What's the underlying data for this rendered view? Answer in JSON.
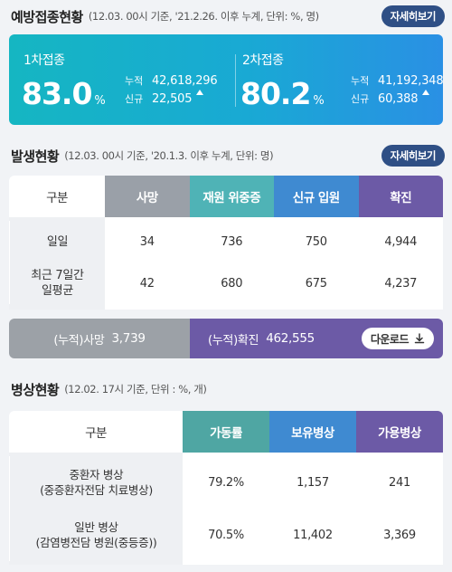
{
  "vaccination": {
    "title": "예방접종현황",
    "note": "(12.03. 00시 기준, '21.2.26. 이후 누계, 단위: %, 명)",
    "detail_button": "자세히보기",
    "first_dose": {
      "label": "1차접종",
      "percent": "83.0",
      "unit": "%",
      "cumulative_label": "누적",
      "cumulative": "42,618,296",
      "new_label": "신규",
      "new": "22,505"
    },
    "second_dose": {
      "label": "2차접종",
      "percent": "80.2",
      "unit": "%",
      "cumulative_label": "누적",
      "cumulative": "41,192,348",
      "new_label": "신규",
      "new": "60,388"
    }
  },
  "outbreak": {
    "title": "발생현황",
    "note": "(12.03. 00시 기준, '20.1.3. 이후 누계, 단위: 명)",
    "detail_button": "자세히보기",
    "headers": [
      "구분",
      "사망",
      "재원 위중증",
      "신규 입원",
      "확진"
    ],
    "rows": [
      {
        "label": "일일",
        "values": [
          "34",
          "736",
          "750",
          "4,944"
        ]
      },
      {
        "label": "최근 7일간\n일평균",
        "values": [
          "42",
          "680",
          "675",
          "4,237"
        ]
      }
    ],
    "cumulative": {
      "death_label": "(누적)사망",
      "death_value": "3,739",
      "confirmed_label": "(누적)확진",
      "confirmed_value": "462,555",
      "download_button": "다운로드"
    }
  },
  "beds": {
    "title": "병상현황",
    "note": "(12.02. 17시 기준, 단위 : %, 개)",
    "headers": [
      "구분",
      "가동률",
      "보유병상",
      "가용병상"
    ],
    "rows": [
      {
        "label": "중환자 병상\n(중증환자전담 치료병상)",
        "values": [
          "79.2%",
          "1,157",
          "241"
        ]
      },
      {
        "label": "일반 병상\n(감염병전담 병원(중등증))",
        "values": [
          "70.5%",
          "11,402",
          "3,369"
        ]
      }
    ]
  },
  "colors": {
    "vaccination_gradient_start": "#15b6c2",
    "vaccination_gradient_end": "#2a90e4",
    "death": "#9aa0a8",
    "critical": "#4fb3b6",
    "admission": "#3f8ad1",
    "confirmed": "#6c5aa6",
    "button": "#2f4f85"
  }
}
